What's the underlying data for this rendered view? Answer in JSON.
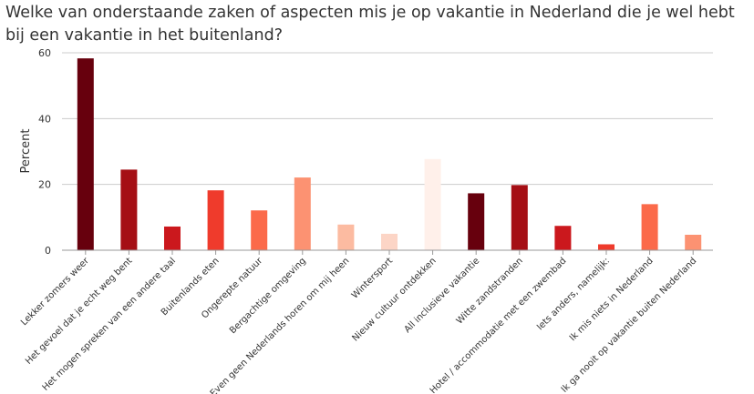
{
  "chart_data": {
    "type": "bar",
    "title": "Welke van onderstaande zaken of aspecten mis je op vakantie in Nederland die je wel hebt bij een vakantie in het buitenland?",
    "xlabel": "",
    "ylabel": "Percent",
    "ylim": [
      0,
      60
    ],
    "yticks": [
      0,
      20,
      40,
      60
    ],
    "grid": true,
    "categories": [
      "Lekker zomers weer",
      "Het gevoel dat je echt weg bent",
      "Het mogen spreken van een andere taal",
      "Buitenlands eten",
      "Ongerepte natuur",
      "Bergachtige omgeving",
      "Even geen Nederlands horen om mij heen",
      "Wintersport",
      "Nieuw cultuur ontdekken",
      "All inclusieve vakantie",
      "Witte zandstranden",
      "Hotel / accommodatie met een zwembad",
      "Iets anders, namelijk:",
      "Ik mis niets in Nederland",
      "Ik ga nooit op vakantie buiten Nederland"
    ],
    "values": [
      58.3,
      24.5,
      7.2,
      18.2,
      12.1,
      22.1,
      7.8,
      5.0,
      27.7,
      17.3,
      19.8,
      7.4,
      1.8,
      14.0,
      4.7
    ],
    "colors": [
      "#67000d",
      "#a50f15",
      "#cb181d",
      "#ef3b2c",
      "#fb6a4a",
      "#fc9272",
      "#fcbba1",
      "#fcd5c6",
      "#fff0ea",
      "#67000d",
      "#a50f15",
      "#cb181d",
      "#ef3b2c",
      "#fb6a4a",
      "#fc9272"
    ]
  }
}
